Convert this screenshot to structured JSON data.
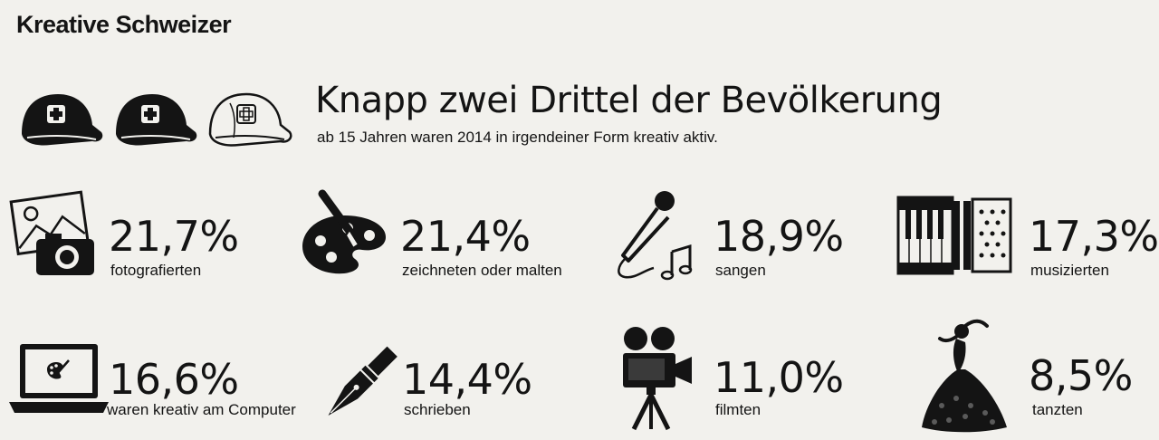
{
  "kicker": "Kreative Schweizer",
  "headline": "Knapp zwei Drittel der Bevölkerung",
  "subline": "ab 15 Jahren waren 2014 in irgendeiner Form kreativ aktiv.",
  "icons": {
    "caps": "swiss-cap-icon",
    "photo": "photo-camera-icon",
    "palette": "paint-palette-icon",
    "microphone": "microphone-icon",
    "accordion": "accordion-icon",
    "laptop": "laptop-icon",
    "pen": "fountain-pen-icon",
    "camera": "film-camera-icon",
    "dancer": "dancer-icon"
  },
  "colors": {
    "ink": "#141414",
    "paper": "#f2f1ed"
  },
  "chart_data": {
    "type": "pictogram",
    "title": "Knapp zwei Drittel der Bevölkerung",
    "subtitle": "ab 15 Jahren waren 2014 in irgendeiner Form kreativ aktiv.",
    "proportion_icons": {
      "filled": 2,
      "total": 3
    },
    "items": [
      {
        "value_text": "21,7%",
        "value": 21.7,
        "label": "fotografierten",
        "icon": "photo-camera-icon"
      },
      {
        "value_text": "21,4%",
        "value": 21.4,
        "label": "zeichneten oder malten",
        "icon": "paint-palette-icon"
      },
      {
        "value_text": "18,9%",
        "value": 18.9,
        "label": "sangen",
        "icon": "microphone-icon"
      },
      {
        "value_text": "17,3%",
        "value": 17.3,
        "label": "musizierten",
        "icon": "accordion-icon"
      },
      {
        "value_text": "16,6%",
        "value": 16.6,
        "label": "waren kreativ am Computer",
        "icon": "laptop-icon"
      },
      {
        "value_text": "14,4%",
        "value": 14.4,
        "label": "schrieben",
        "icon": "fountain-pen-icon"
      },
      {
        "value_text": "11,0%",
        "value": 11.0,
        "label": "filmten",
        "icon": "film-camera-icon"
      },
      {
        "value_text": "8,5%",
        "value": 8.5,
        "label": "tanzten",
        "icon": "dancer-icon"
      }
    ]
  }
}
